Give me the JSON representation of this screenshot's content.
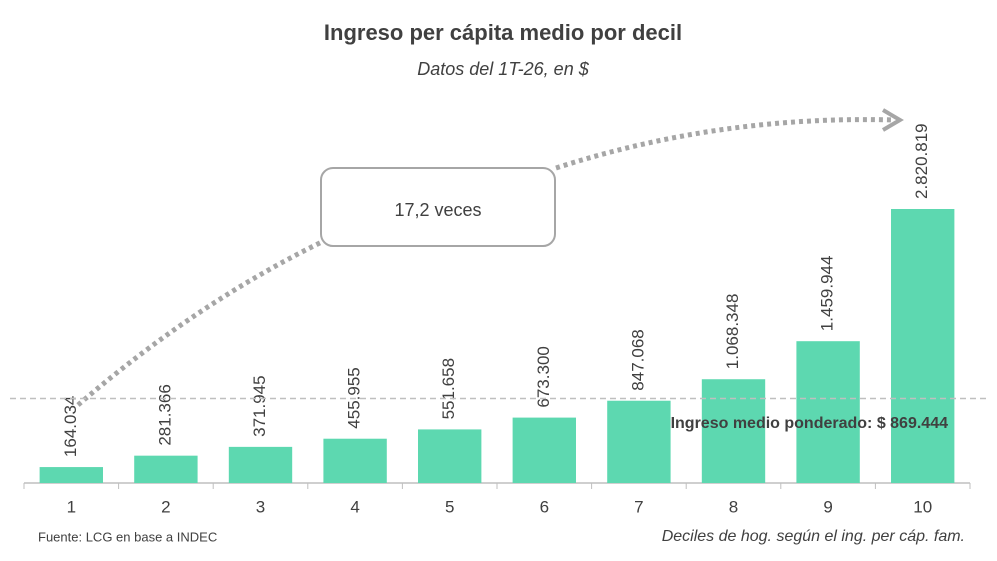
{
  "chart_data": {
    "type": "bar",
    "title": "Ingreso per cápita medio por decil",
    "subtitle": "Datos del 1T-26, en $",
    "x_label": "Deciles de hog. según el ing. per cáp. fam.",
    "source": "Fuente: LCG en base a INDEC",
    "annotation": "17,2 veces",
    "categories": [
      "1",
      "2",
      "3",
      "4",
      "5",
      "6",
      "7",
      "8",
      "9",
      "10"
    ],
    "values": [
      164034,
      281366,
      371945,
      455955,
      551658,
      673300,
      847068,
      1068348,
      1459944,
      2820819
    ],
    "value_labels": [
      "164.034",
      "281.366",
      "371.945",
      "455.955",
      "551.658",
      "673.300",
      "847.068",
      "1.068.348",
      "1.459.944",
      "2.820.819"
    ],
    "color": "#5dd8b0",
    "ylim": [
      0,
      3000000
    ],
    "reference_line": {
      "value": 869444,
      "label": "Ingreso medio ponderado: $ 869.444"
    }
  }
}
